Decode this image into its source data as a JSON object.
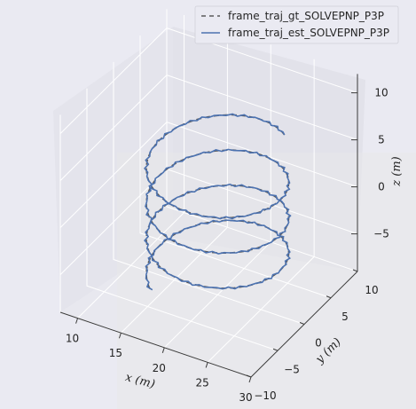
{
  "chart_data": {
    "type": "line3d",
    "title": "",
    "xlabel": "x (m)",
    "ylabel": "y (m)",
    "zlabel": "z (m)",
    "xlim": [
      8,
      30
    ],
    "ylim": [
      -10,
      10
    ],
    "zlim": [
      -9,
      12
    ],
    "x_ticks": [
      "10",
      "15",
      "20",
      "25",
      "30"
    ],
    "y_ticks": [
      "−10",
      "−5",
      "0",
      "5",
      "10"
    ],
    "z_ticks": [
      "10",
      "5",
      "0",
      "−5"
    ],
    "legend_position": "top-right",
    "helix": {
      "center_x": 20,
      "center_y": 0,
      "radius": 7,
      "z_start": 6.3,
      "z_end": -6.8,
      "turns": 3.5
    },
    "series": [
      {
        "name": "frame_traj_gt_SOLVEPNP_P3P",
        "style": "dashed",
        "color": "#5a5a5a"
      },
      {
        "name": "frame_traj_est_SOLVEPNP_P3P",
        "style": "solid",
        "color": "#4c72b0"
      }
    ]
  }
}
